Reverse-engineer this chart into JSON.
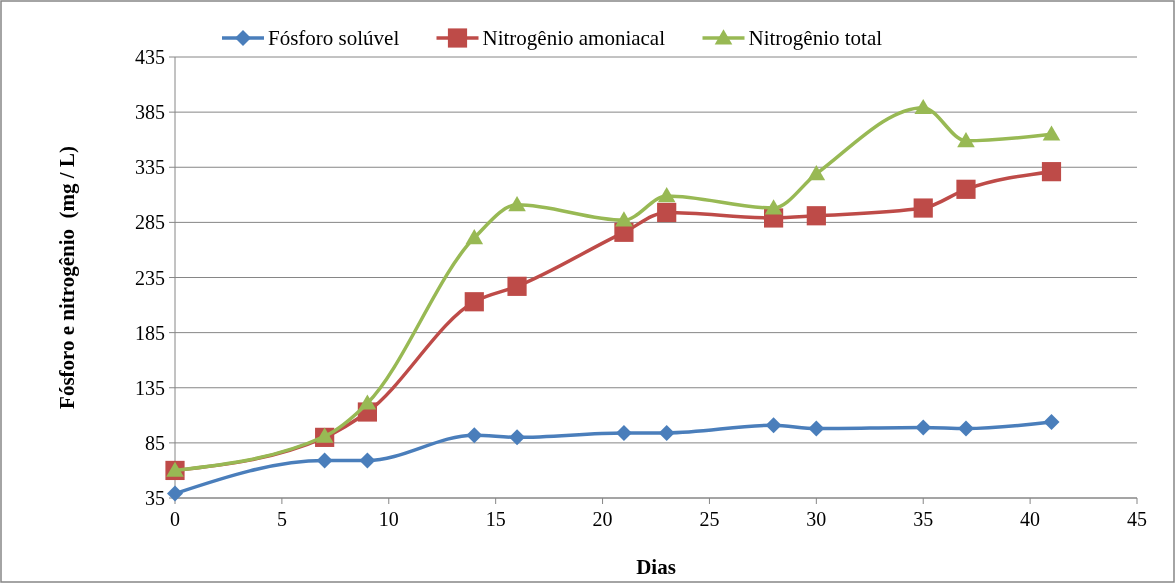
{
  "chart_data": {
    "type": "line",
    "xlabel": "Dias",
    "ylabel": "Fósforo e nitrogênio  (mg / L)",
    "xlim": [
      0,
      45
    ],
    "xticks": [
      0,
      5,
      10,
      15,
      20,
      25,
      30,
      35,
      40,
      45
    ],
    "ylim": [
      35,
      435
    ],
    "yticks": [
      35,
      85,
      135,
      185,
      235,
      285,
      335,
      385,
      435
    ],
    "grid": "y",
    "legend": "top",
    "x": [
      0,
      7,
      9,
      14,
      16,
      21,
      23,
      28,
      30,
      35,
      37,
      41
    ],
    "series": [
      {
        "name": "Fósforo solúvel",
        "color": "#4a7ebb",
        "marker": "diamond",
        "values": [
          39,
          69,
          69,
          92,
          90,
          94,
          94,
          101,
          98,
          99,
          98,
          104
        ]
      },
      {
        "name": "Nitrogênio amoniacal",
        "color": "#be4b48",
        "marker": "square",
        "values": [
          60,
          90,
          113,
          213,
          227,
          276,
          294,
          289,
          291,
          298,
          315,
          331
        ]
      },
      {
        "name": "Nitrogênio total",
        "color": "#98b954",
        "marker": "triangle",
        "values": [
          60,
          91,
          121,
          271,
          301,
          287,
          309,
          298,
          329,
          389,
          359,
          365
        ]
      }
    ]
  }
}
